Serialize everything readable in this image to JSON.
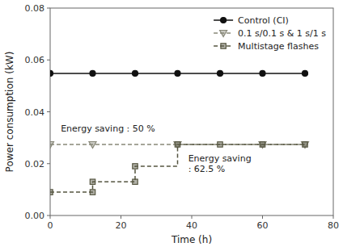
{
  "chart_data": {
    "type": "line",
    "xlabel": "Time (h)",
    "ylabel": "Power consumption (kW)",
    "xlim": [
      0,
      80
    ],
    "ylim": [
      0,
      0.08
    ],
    "xticks": [
      0,
      20,
      40,
      60,
      80
    ],
    "yticks": [
      {
        "value": 0,
        "label": "0.00"
      },
      0.02,
      0.04,
      0.06,
      0.08
    ],
    "grid": false,
    "legend": "upper right",
    "series": [
      {
        "name": "Control (CI)",
        "type": "line",
        "color": "#111111",
        "marker": "circle",
        "line_style": "solid",
        "x": [
          0,
          12,
          24,
          36,
          48,
          60,
          72
        ],
        "values": [
          0.0548,
          0.0548,
          0.0548,
          0.0548,
          0.0548,
          0.0548,
          0.0548
        ]
      },
      {
        "name": "0.1 s/0.1 s & 1 s/1 s",
        "type": "line",
        "color": "#888878",
        "marker": "triangle-down",
        "line_style": "dashed",
        "x": [
          0,
          12,
          36,
          60,
          72
        ],
        "values": [
          0.0274,
          0.0274,
          0.0274,
          0.0274,
          0.0274
        ]
      },
      {
        "name": "Multistage flashes",
        "type": "step",
        "color": "#555540",
        "marker": "square",
        "line_style": "dashed",
        "x": [
          0,
          12,
          12,
          24,
          24,
          36,
          48,
          60,
          72
        ],
        "values": [
          0.009,
          0.009,
          0.013,
          0.013,
          0.019,
          0.0274,
          0.0274,
          0.0274,
          0.0274
        ]
      }
    ],
    "annotations": [
      {
        "text": "Energy saving : 50 %",
        "x": 3,
        "y": 0.0315
      },
      {
        "text": "Energy saving\n: 62.5 %",
        "x": 39,
        "y": 0.024
      }
    ]
  }
}
